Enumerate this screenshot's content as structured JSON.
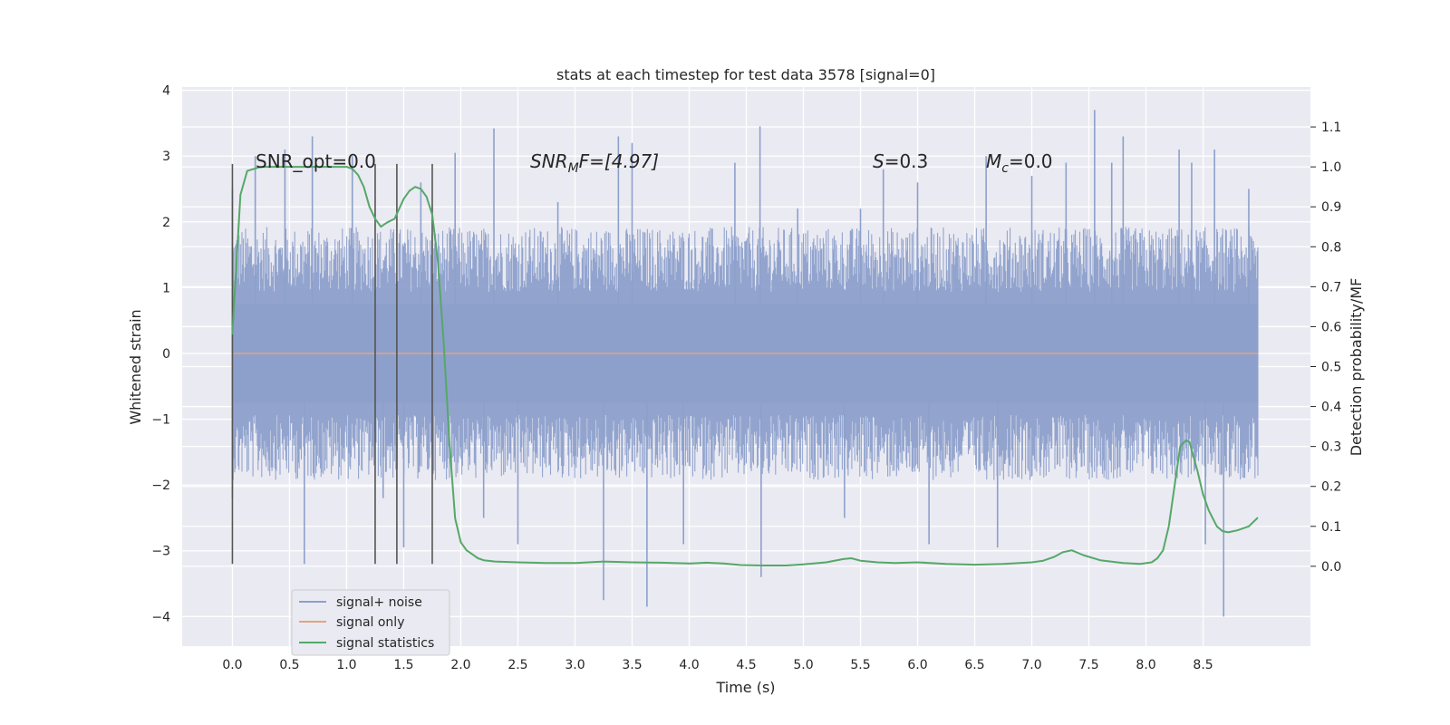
{
  "chart_data": {
    "type": "line",
    "title": "stats at each timestep for test data 3578 [signal=0]",
    "xlabel": "Time (s)",
    "ylabel_left": "Whitened strain",
    "ylabel_right": "Detection probability/MF",
    "xlim": [
      -0.44,
      9.44
    ],
    "ylim_left": [
      -4.45,
      4.05
    ],
    "ylim_right": [
      -0.2,
      1.2
    ],
    "x_ticks": [
      "0.0",
      "0.5",
      "1.0",
      "1.5",
      "2.0",
      "2.5",
      "3.0",
      "3.5",
      "4.0",
      "4.5",
      "5.0",
      "5.5",
      "6.0",
      "6.5",
      "7.0",
      "7.5",
      "8.0",
      "8.5"
    ],
    "x_tick_values": [
      0.0,
      0.5,
      1.0,
      1.5,
      2.0,
      2.5,
      3.0,
      3.5,
      4.0,
      4.5,
      5.0,
      5.5,
      6.0,
      6.5,
      7.0,
      7.5,
      8.0,
      8.5
    ],
    "y_left_ticks": [
      "−4",
      "−3",
      "−2",
      "−1",
      "0",
      "1",
      "2",
      "3",
      "4"
    ],
    "y_left_tick_values": [
      -4,
      -3,
      -2,
      -1,
      0,
      1,
      2,
      3,
      4
    ],
    "y_right_ticks": [
      "0.0",
      "0.1",
      "0.2",
      "0.3",
      "0.4",
      "0.5",
      "0.6",
      "0.7",
      "0.8",
      "0.9",
      "1.0",
      "1.1"
    ],
    "y_right_tick_values": [
      0.0,
      0.1,
      0.2,
      0.3,
      0.4,
      0.5,
      0.6,
      0.7,
      0.8,
      0.9,
      1.0,
      1.1
    ],
    "grid": true,
    "legend_position": "lower-left",
    "legend": [
      {
        "label": "signal+ noise",
        "color": "#8da0cb"
      },
      {
        "label": "signal only",
        "color": "#e5a282"
      },
      {
        "label": "signal statistics",
        "color": "#55a868"
      }
    ],
    "annotations": {
      "snr_opt": "SNR_opt=0.0",
      "snr_mf_main": "SNR",
      "snr_mf_sub": "M",
      "snr_mf_rest": "F=[4.97]",
      "s_italic": "S",
      "s_rest": "=0.3",
      "mc_main": "M",
      "mc_sub": "c",
      "mc_rest": "=0.0"
    },
    "marker_lines_x": [
      0.0,
      1.25,
      1.44,
      1.75
    ],
    "marker_lines_y_range": [
      -3.2,
      2.88
    ],
    "series": [
      {
        "name": "signal+ noise",
        "color": "#8da0cb",
        "axis": "left",
        "x_range": [
          0.0,
          8.98
        ],
        "envelope_typical": 1.1,
        "core_band": 0.75,
        "spikes": [
          {
            "x": 0.0,
            "y": 2.5
          },
          {
            "x": 0.0,
            "y": -2.2
          },
          {
            "x": 0.2,
            "y": 3.0
          },
          {
            "x": 0.46,
            "y": 3.1
          },
          {
            "x": 0.63,
            "y": -3.2
          },
          {
            "x": 0.7,
            "y": 3.3
          },
          {
            "x": 1.05,
            "y": 3.0
          },
          {
            "x": 1.32,
            "y": -2.2
          },
          {
            "x": 1.5,
            "y": -2.95
          },
          {
            "x": 1.65,
            "y": 2.6
          },
          {
            "x": 1.95,
            "y": 3.05
          },
          {
            "x": 2.2,
            "y": -2.5
          },
          {
            "x": 2.29,
            "y": 3.42
          },
          {
            "x": 2.5,
            "y": -2.9
          },
          {
            "x": 2.85,
            "y": 2.3
          },
          {
            "x": 3.25,
            "y": -3.75
          },
          {
            "x": 3.38,
            "y": 3.3
          },
          {
            "x": 3.5,
            "y": 3.2
          },
          {
            "x": 3.63,
            "y": -3.85
          },
          {
            "x": 3.95,
            "y": -2.9
          },
          {
            "x": 4.4,
            "y": 2.9
          },
          {
            "x": 4.62,
            "y": 3.45
          },
          {
            "x": 4.63,
            "y": -3.4
          },
          {
            "x": 4.95,
            "y": 2.2
          },
          {
            "x": 5.36,
            "y": -2.5
          },
          {
            "x": 5.5,
            "y": 2.2
          },
          {
            "x": 5.7,
            "y": 2.8
          },
          {
            "x": 6.0,
            "y": 2.6
          },
          {
            "x": 6.1,
            "y": -2.9
          },
          {
            "x": 6.6,
            "y": 3.0
          },
          {
            "x": 6.7,
            "y": -2.95
          },
          {
            "x": 7.0,
            "y": 2.7
          },
          {
            "x": 7.3,
            "y": 2.9
          },
          {
            "x": 7.55,
            "y": 3.7
          },
          {
            "x": 7.7,
            "y": 2.9
          },
          {
            "x": 7.8,
            "y": 3.3
          },
          {
            "x": 8.29,
            "y": 3.1
          },
          {
            "x": 8.4,
            "y": 2.9
          },
          {
            "x": 8.52,
            "y": -2.9
          },
          {
            "x": 8.6,
            "y": 3.1
          },
          {
            "x": 8.68,
            "y": -4.0
          },
          {
            "x": 8.9,
            "y": 2.5
          }
        ]
      },
      {
        "name": "signal only",
        "color": "#e5a282",
        "axis": "left",
        "x": [
          0.0,
          8.98
        ],
        "y": [
          0.0,
          0.0
        ]
      },
      {
        "name": "signal statistics",
        "color": "#55a868",
        "axis": "right",
        "x": [
          0.0,
          0.07,
          0.13,
          0.25,
          0.5,
          0.75,
          1.0,
          1.05,
          1.1,
          1.15,
          1.2,
          1.25,
          1.3,
          1.35,
          1.42,
          1.5,
          1.55,
          1.6,
          1.65,
          1.7,
          1.75,
          1.8,
          1.85,
          1.9,
          1.95,
          2.0,
          2.05,
          2.1,
          2.15,
          2.2,
          2.3,
          2.5,
          2.75,
          3.0,
          3.25,
          3.5,
          3.75,
          4.0,
          4.15,
          4.3,
          4.45,
          4.65,
          4.85,
          5.0,
          5.2,
          5.35,
          5.42,
          5.5,
          5.65,
          5.8,
          6.0,
          6.25,
          6.5,
          6.75,
          7.0,
          7.1,
          7.2,
          7.27,
          7.35,
          7.45,
          7.6,
          7.8,
          7.95,
          8.05,
          8.1,
          8.15,
          8.2,
          8.25,
          8.3,
          8.35,
          8.38,
          8.45,
          8.5,
          8.55,
          8.62,
          8.67,
          8.72,
          8.8,
          8.9,
          8.98
        ],
        "y": [
          0.58,
          0.93,
          0.99,
          1.0,
          1.0,
          1.0,
          1.0,
          0.995,
          0.98,
          0.95,
          0.9,
          0.87,
          0.85,
          0.86,
          0.87,
          0.92,
          0.94,
          0.95,
          0.945,
          0.925,
          0.88,
          0.76,
          0.56,
          0.31,
          0.12,
          0.06,
          0.04,
          0.03,
          0.02,
          0.015,
          0.012,
          0.01,
          0.008,
          0.008,
          0.012,
          0.01,
          0.009,
          0.007,
          0.009,
          0.007,
          0.003,
          0.002,
          0.002,
          0.005,
          0.01,
          0.018,
          0.02,
          0.014,
          0.01,
          0.008,
          0.01,
          0.006,
          0.004,
          0.006,
          0.01,
          0.014,
          0.024,
          0.035,
          0.04,
          0.028,
          0.015,
          0.008,
          0.006,
          0.01,
          0.02,
          0.04,
          0.1,
          0.2,
          0.3,
          0.315,
          0.312,
          0.24,
          0.18,
          0.14,
          0.1,
          0.088,
          0.085,
          0.09,
          0.1,
          0.122
        ]
      }
    ]
  }
}
